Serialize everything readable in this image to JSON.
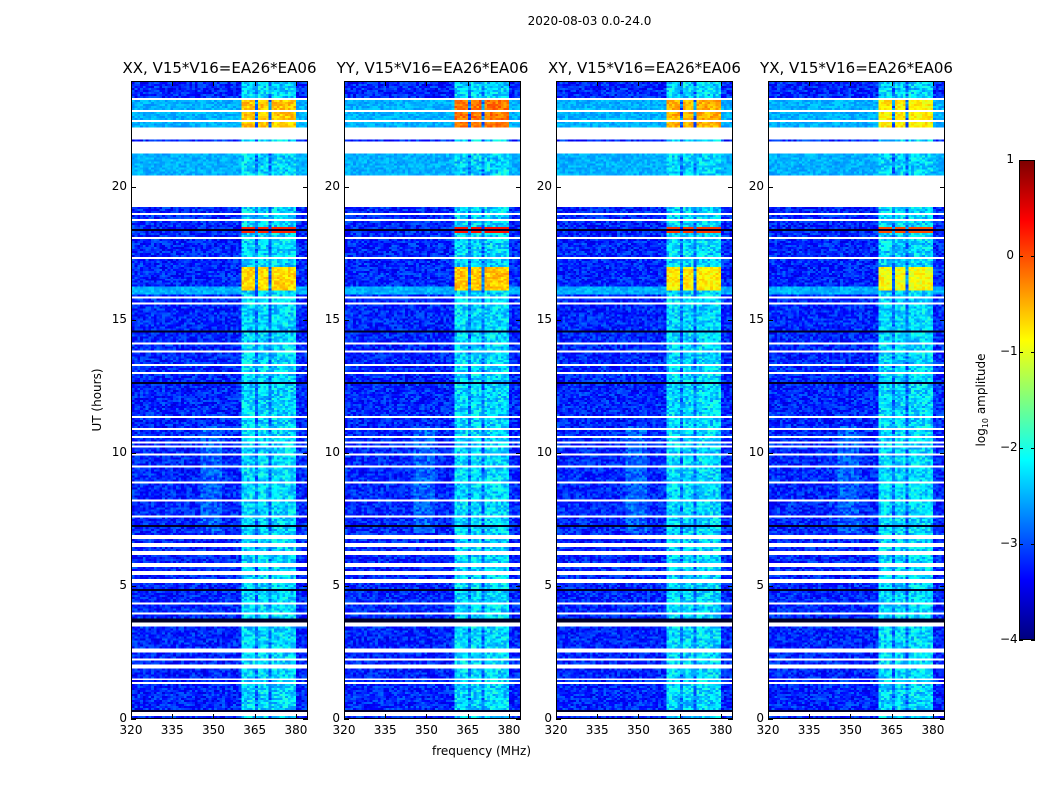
{
  "chart_data": {
    "type": "heatmap",
    "title": "2020-08-03 0.0-24.0",
    "xlabel": "frequency (MHz)",
    "ylabel": "UT (hours)",
    "xlim": [
      320,
      384.4
    ],
    "ylim": [
      0,
      24
    ],
    "xticks": [
      320,
      335,
      350,
      365,
      380
    ],
    "yticks": [
      0,
      5,
      10,
      15,
      20
    ],
    "colormap": "jet",
    "colorbar": {
      "label_main": "log",
      "label_sub": "10",
      "label_rest": " amplitude",
      "range": [
        -4,
        1
      ],
      "ticks": [
        1,
        0,
        -1,
        -2,
        -3,
        -4
      ]
    },
    "panels": [
      {
        "title": "XX, V15*V16=EA26*EA06",
        "block_level_top": -0.6,
        "block_level_mid": -0.7,
        "red_row_level": 0.2
      },
      {
        "title": "YY, V15*V16=EA26*EA06",
        "block_level_top": -0.2,
        "block_level_mid": -0.6,
        "red_row_level": 0.3
      },
      {
        "title": "XY, V15*V16=EA26*EA06",
        "block_level_top": -0.5,
        "block_level_mid": -0.8,
        "red_row_level": 0.1
      },
      {
        "title": "YX, V15*V16=EA26*EA06",
        "block_level_top": -0.8,
        "block_level_mid": -0.9,
        "red_row_level": 0.0
      }
    ],
    "background_level": -3.2,
    "rfi_band_mhz": [
      360.7,
      380.0
    ],
    "rfi_band_level": -2.3,
    "rfi_subbands_mhz": [
      [
        360.7,
        365.5
      ],
      [
        366.0,
        370.5
      ],
      [
        371.0,
        375.0
      ],
      [
        375.6,
        380.0
      ]
    ],
    "bright_time_ranges_hours": [
      [
        22.3,
        23.3
      ],
      [
        16.1,
        17.0
      ]
    ],
    "elevated_background_hours": [
      [
        22.3,
        23.3
      ],
      [
        20.5,
        21.3
      ],
      [
        16.0,
        16.3
      ]
    ],
    "red_row_hours": [
      18.3,
      18.5
    ],
    "flagged_ranges_hours": [
      [
        19.3,
        20.5
      ],
      [
        21.3,
        21.75
      ],
      [
        21.85,
        22.3
      ]
    ],
    "flagged_lines_hours": [
      23.39,
      22.94,
      22.53,
      19.04,
      18.78,
      18.1,
      17.39,
      15.85,
      15.66,
      14.12,
      13.86,
      13.29,
      13.03,
      11.38,
      10.93,
      10.63,
      10.4,
      10.21,
      9.91,
      9.5,
      8.86,
      8.22,
      7.62,
      6.83,
      6.53,
      6.23,
      5.78,
      5.48,
      5.18,
      4.32,
      3.94,
      3.53,
      2.55,
      2.22,
      1.95,
      1.46,
      1.31,
      0.15
    ],
    "dark_lines_hours": [
      18.44,
      14.61,
      12.65,
      7.21,
      4.81,
      3.68,
      2.59,
      0.26
    ]
  }
}
